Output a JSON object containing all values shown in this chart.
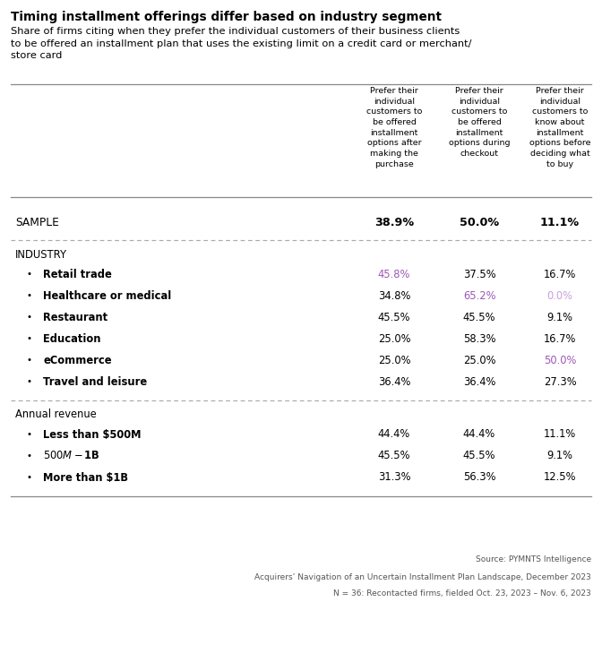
{
  "title": "Timing installment offerings differ based on industry segment",
  "subtitle": "Share of firms citing when they prefer the individual customers of their business clients\nto be offered an installment plan that uses the existing limit on a credit card or merchant/\nstore card",
  "col_headers": [
    "Prefer their\nindividual\ncustomers to\nbe offered\ninstallment\noptions after\nmaking the\npurchase",
    "Prefer their\nindividual\ncustomers to\nbe offered\ninstallment\noptions during\ncheckout",
    "Prefer their\nindividual\ncustomers to\nknow about\ninstallment\noptions before\ndeciding what\nto buy"
  ],
  "sample_label": "SAMPLE",
  "sample_values": [
    "38.9%",
    "50.0%",
    "11.1%"
  ],
  "sample_colors": [
    "#000000",
    "#000000",
    "#000000"
  ],
  "section1_header": "INDUSTRY",
  "section1_rows": [
    {
      "label": "Retail trade",
      "values": [
        "45.8%",
        "37.5%",
        "16.7%"
      ],
      "colors": [
        "#9b59b6",
        "#000000",
        "#000000"
      ]
    },
    {
      "label": "Healthcare or medical",
      "values": [
        "34.8%",
        "65.2%",
        "0.0%"
      ],
      "colors": [
        "#000000",
        "#9b59b6",
        "#c8a0d8"
      ]
    },
    {
      "label": "Restaurant",
      "values": [
        "45.5%",
        "45.5%",
        "9.1%"
      ],
      "colors": [
        "#000000",
        "#000000",
        "#000000"
      ]
    },
    {
      "label": "Education",
      "values": [
        "25.0%",
        "58.3%",
        "16.7%"
      ],
      "colors": [
        "#000000",
        "#000000",
        "#000000"
      ]
    },
    {
      "label": "eCommerce",
      "values": [
        "25.0%",
        "25.0%",
        "50.0%"
      ],
      "colors": [
        "#000000",
        "#000000",
        "#9b59b6"
      ]
    },
    {
      "label": "Travel and leisure",
      "values": [
        "36.4%",
        "36.4%",
        "27.3%"
      ],
      "colors": [
        "#000000",
        "#000000",
        "#000000"
      ]
    }
  ],
  "section2_header": "Annual revenue",
  "section2_rows": [
    {
      "label": "Less than $500M",
      "values": [
        "44.4%",
        "44.4%",
        "11.1%"
      ],
      "colors": [
        "#000000",
        "#000000",
        "#000000"
      ]
    },
    {
      "label": "$500M-$1B",
      "values": [
        "45.5%",
        "45.5%",
        "9.1%"
      ],
      "colors": [
        "#000000",
        "#000000",
        "#000000"
      ]
    },
    {
      "label": "More than $1B",
      "values": [
        "31.3%",
        "56.3%",
        "12.5%"
      ],
      "colors": [
        "#000000",
        "#000000",
        "#000000"
      ]
    }
  ],
  "footer_lines": [
    "Source: PYMNTS Intelligence",
    "Acquirers’ Navigation of an Uncertain Installment Plan Landscape, December 2023",
    "N = 36: Recontacted firms, fielded Oct. 23, 2023 – Nov. 6, 2023"
  ],
  "bg_color": "#ffffff",
  "text_color": "#000000",
  "purple_color": "#9b59b6",
  "light_purple_color": "#c8a0d8",
  "line_color": "#888888",
  "dash_color": "#aaaaaa"
}
